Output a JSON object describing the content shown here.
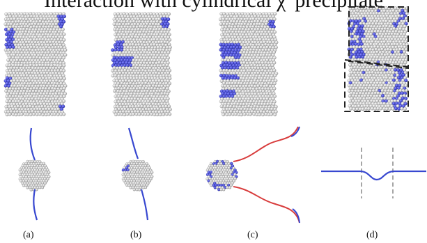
{
  "title": "Interaction with cylindrical χ' precipitate",
  "panel_labels": [
    "(a)",
    "(b)",
    "(c)",
    "(d)"
  ],
  "colors": {
    "atom": "#d4d4d4",
    "atom_outline": "#8f8f8f",
    "blue_atom": "#4a4ed6",
    "dislocation_blue": "#3848d0",
    "dislocation_red": "#d83c3c",
    "dashed_box": "#222222",
    "dashed_guide": "#888888"
  }
}
